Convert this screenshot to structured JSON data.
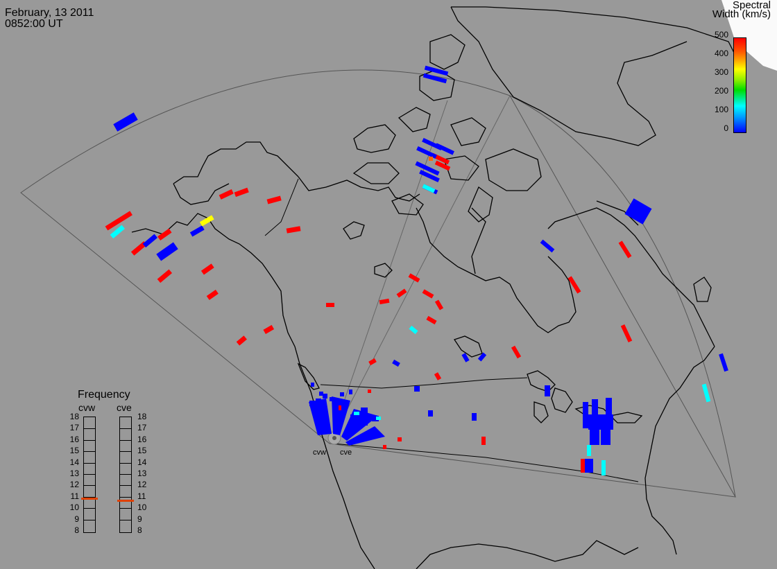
{
  "timestamp": {
    "date": "February, 13 2011",
    "time": "0852:00 UT"
  },
  "colorbar": {
    "title_line1": "Spectral",
    "title_line2": "Width (km/s)",
    "ticks": [
      "500",
      "400",
      "300",
      "200",
      "100",
      "0"
    ],
    "colors": {
      "max": "#ff0000",
      "high": "#ffaa00",
      "mid": "#ffff00",
      "low_mid": "#00dd00",
      "low": "#00ffff",
      "min": "#0000ff"
    }
  },
  "frequency_panel": {
    "title": "Frequency",
    "radars": [
      "cvw",
      "cve"
    ],
    "scale": [
      "18",
      "17",
      "16",
      "15",
      "14",
      "13",
      "12",
      "11",
      "10",
      "9",
      "8"
    ],
    "cvw_freq_mhz": 10.8,
    "cve_freq_mhz": 10.6
  },
  "sites": {
    "west": "cvw",
    "east": "cve"
  },
  "map": {
    "background": "#999999",
    "coastline_color": "#000000",
    "fov_outline_color": "#555555",
    "projection": "polar stereographic, North America"
  }
}
